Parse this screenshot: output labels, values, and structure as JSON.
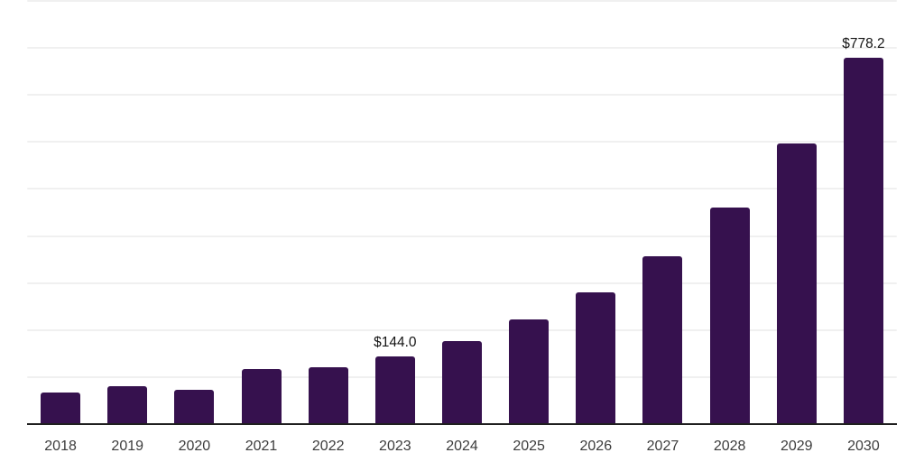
{
  "chart_data": {
    "type": "bar",
    "title": "",
    "xlabel": "",
    "ylabel": "",
    "categories": [
      "2018",
      "2019",
      "2020",
      "2021",
      "2022",
      "2023",
      "2024",
      "2025",
      "2026",
      "2027",
      "2028",
      "2029",
      "2030"
    ],
    "values": [
      68,
      80,
      72,
      118,
      120,
      144.0,
      176,
      222,
      280,
      357,
      460,
      596,
      778.2
    ],
    "value_labels": {
      "2023": "$144.0",
      "2030": "$778.2"
    },
    "ylim": [
      0,
      900
    ],
    "gridline_step": 100,
    "grid": "horizontal-only",
    "y_tick_labels_visible": false,
    "legend": "none",
    "colors": {
      "bar": "#36114E",
      "gridline": "#F0F0F0",
      "axis_line": "#1F1F1F",
      "tick_label": "#3C3C3C",
      "data_label": "#141414",
      "background": "#FFFFFF"
    }
  }
}
